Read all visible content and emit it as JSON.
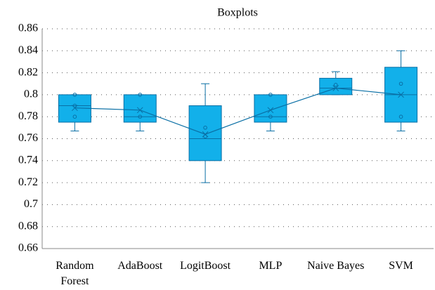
{
  "chart_data": {
    "type": "boxplot",
    "title": "Boxplots",
    "categories": [
      "Random Forest",
      "AdaBoost",
      "LogitBoost",
      "MLP",
      "Naive Bayes",
      "SVM"
    ],
    "boxes": [
      {
        "min": 0.767,
        "q1": 0.775,
        "median": 0.79,
        "q3": 0.8,
        "max": 0.8,
        "mean": 0.788,
        "points": [
          0.8,
          0.79,
          0.78
        ]
      },
      {
        "min": 0.767,
        "q1": 0.775,
        "median": 0.78,
        "q3": 0.8,
        "max": 0.8,
        "mean": 0.786,
        "points": [
          0.8,
          0.78
        ]
      },
      {
        "min": 0.72,
        "q1": 0.74,
        "median": 0.76,
        "q3": 0.79,
        "max": 0.81,
        "mean": 0.764,
        "points": [
          0.77,
          0.762
        ]
      },
      {
        "min": 0.767,
        "q1": 0.775,
        "median": 0.78,
        "q3": 0.8,
        "max": 0.8,
        "mean": 0.786,
        "points": [
          0.8,
          0.78
        ]
      },
      {
        "min": 0.8,
        "q1": 0.8,
        "median": 0.806,
        "q3": 0.815,
        "max": 0.821,
        "mean": 0.806,
        "points": [
          0.809
        ]
      },
      {
        "min": 0.767,
        "q1": 0.775,
        "median": 0.8,
        "q3": 0.825,
        "max": 0.84,
        "mean": 0.8,
        "points": [
          0.81,
          0.78
        ]
      }
    ],
    "color": "#12b0ea",
    "ylim": [
      0.66,
      0.86
    ],
    "yticks": [
      0.66,
      0.68,
      0.7,
      0.72,
      0.74,
      0.76,
      0.78,
      0.8,
      0.82,
      0.84,
      0.86
    ],
    "grid": true
  }
}
